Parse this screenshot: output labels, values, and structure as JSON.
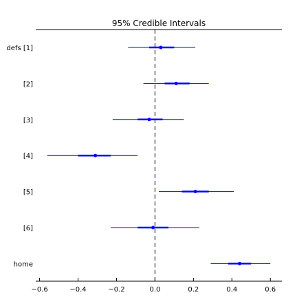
{
  "chart_data": {
    "type": "forest",
    "title": "95% Credible Intervals",
    "xlabel": "",
    "ylabel": "",
    "xlim": [
      -0.62,
      0.66
    ],
    "xticks": [
      -0.6,
      -0.4,
      -0.2,
      0.0,
      0.2,
      0.4,
      0.6
    ],
    "xtick_labels": [
      "−0.6",
      "−0.4",
      "−0.2",
      "0.0",
      "0.2",
      "0.4",
      "0.6"
    ],
    "reference_line": 0.0,
    "grid": false,
    "marker_color": "#0000ff",
    "categories": [
      "defs [1]",
      "[2]",
      "[3]",
      "[4]",
      "[5]",
      "[6]",
      "home"
    ],
    "median": [
      0.03,
      0.11,
      -0.03,
      -0.31,
      0.21,
      -0.01,
      0.44
    ],
    "interval_50": [
      [
        -0.03,
        0.1
      ],
      [
        0.05,
        0.18
      ],
      [
        -0.09,
        0.04
      ],
      [
        -0.4,
        -0.23
      ],
      [
        0.14,
        0.28
      ],
      [
        -0.09,
        0.07
      ],
      [
        0.38,
        0.5
      ]
    ],
    "interval_95": [
      [
        -0.14,
        0.21
      ],
      [
        -0.06,
        0.28
      ],
      [
        -0.22,
        0.15
      ],
      [
        -0.56,
        -0.09
      ],
      [
        0.02,
        0.41
      ],
      [
        -0.23,
        0.23
      ],
      [
        0.29,
        0.6
      ]
    ]
  }
}
